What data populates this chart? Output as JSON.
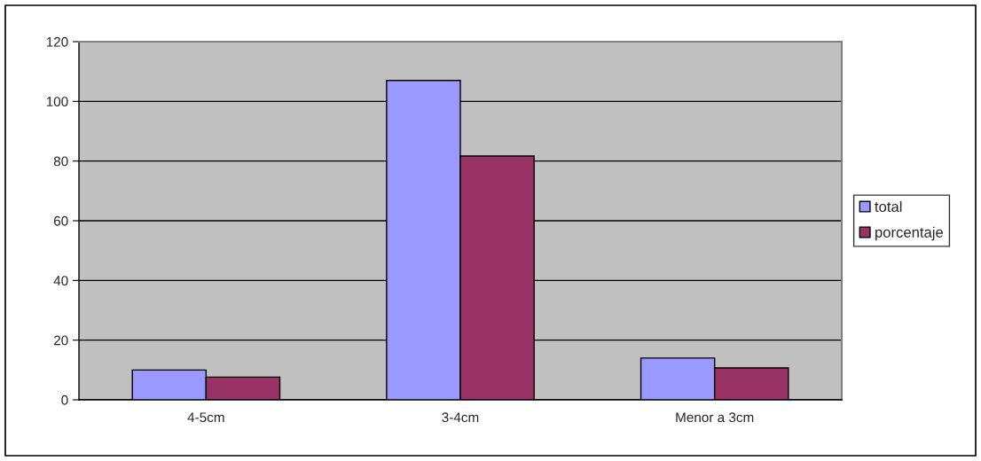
{
  "chart_data": {
    "type": "bar",
    "categories": [
      "4-5cm",
      "3-4cm",
      "Menor a 3cm"
    ],
    "series": [
      {
        "name": "total",
        "color": "#9999ff",
        "values": [
          10,
          107,
          14
        ]
      },
      {
        "name": "porcentaje",
        "color": "#993366",
        "values": [
          7.6,
          81.7,
          10.7
        ]
      }
    ],
    "ylim": [
      0,
      120
    ],
    "yticks": [
      0,
      20,
      40,
      60,
      80,
      100,
      120
    ],
    "grid": "y",
    "legend": "right"
  }
}
